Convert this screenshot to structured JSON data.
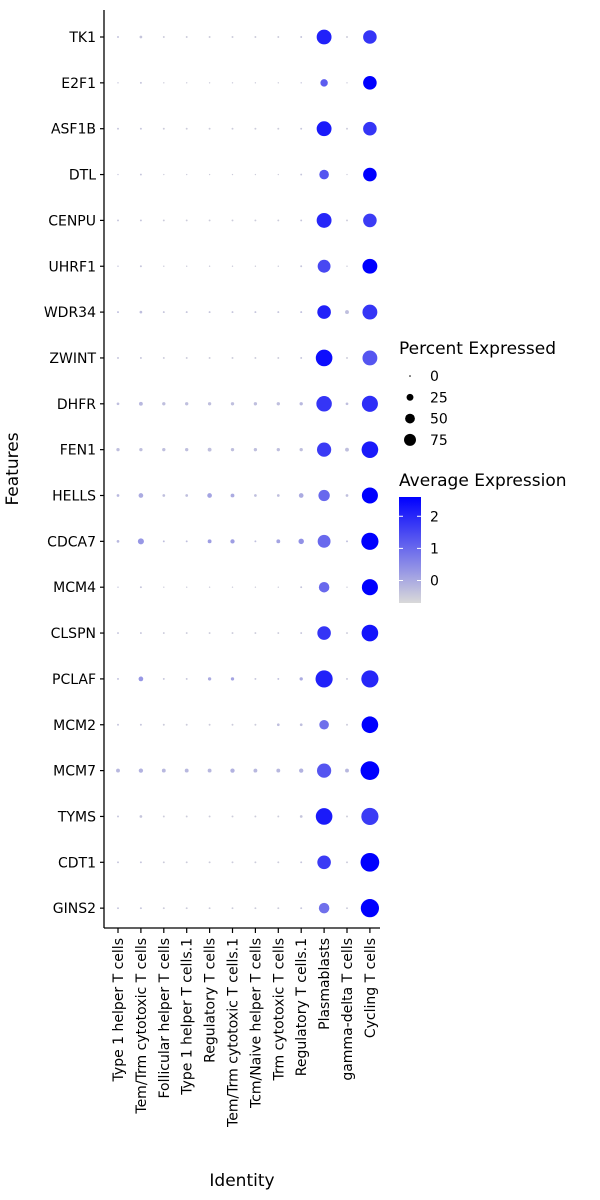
{
  "chart_data": {
    "type": "dot",
    "xlabel": "Identity",
    "ylabel": "Features",
    "categories": [
      "Type 1 helper T cells",
      "Tem/Trm cytotoxic T cells",
      "Follicular helper T cells",
      "Type 1 helper T cells.1",
      "Regulatory T cells",
      "Tem/Trm cytotoxic T cells.1",
      "Tcm/Naive helper T cells",
      "Trm cytotoxic T cells",
      "Regulatory T cells.1",
      "Plasmablasts",
      "gamma-delta T cells",
      "Cycling T cells"
    ],
    "features": [
      "TK1",
      "E2F1",
      "ASF1B",
      "DTL",
      "CENPU",
      "UHRF1",
      "WDR34",
      "ZWINT",
      "DHFR",
      "FEN1",
      "HELLS",
      "CDCA7",
      "MCM4",
      "CLSPN",
      "PCLAF",
      "MCM2",
      "MCM7",
      "TYMS",
      "CDT1",
      "GINS2"
    ],
    "size_legend": {
      "title": "Percent Expressed",
      "values": [
        0,
        25,
        50,
        75
      ],
      "labels": [
        "0",
        "25",
        "50",
        "75"
      ]
    },
    "color_legend": {
      "title": "Average Expression",
      "range": [
        -0.7,
        2.6
      ],
      "ticks": [
        0,
        1,
        2
      ],
      "tick_labels": [
        "0",
        "1",
        "2"
      ],
      "low_color": "#d9d9d9",
      "high_color": "#0000ff"
    },
    "percent_expressed": [
      [
        1,
        2,
        1,
        1,
        1,
        1,
        1,
        1,
        1,
        60,
        1,
        50
      ],
      [
        0,
        1,
        0,
        0,
        0,
        0,
        0,
        0,
        0,
        15,
        0,
        50
      ],
      [
        1,
        1,
        1,
        1,
        1,
        1,
        1,
        1,
        1,
        60,
        1,
        50
      ],
      [
        0,
        1,
        0,
        0,
        0,
        0,
        0,
        0,
        1,
        25,
        0,
        50
      ],
      [
        1,
        1,
        1,
        1,
        1,
        1,
        1,
        1,
        1,
        60,
        1,
        50
      ],
      [
        0,
        1,
        0,
        0,
        0,
        0,
        0,
        0,
        1,
        45,
        0,
        60
      ],
      [
        1,
        2,
        1,
        1,
        1,
        1,
        1,
        1,
        1,
        50,
        4,
        60
      ],
      [
        1,
        1,
        1,
        1,
        1,
        1,
        1,
        1,
        1,
        75,
        1,
        60
      ],
      [
        2,
        4,
        3,
        3,
        3,
        3,
        3,
        3,
        3,
        65,
        2,
        70
      ],
      [
        3,
        3,
        3,
        3,
        4,
        3,
        3,
        3,
        3,
        55,
        4,
        75
      ],
      [
        2,
        6,
        2,
        2,
        6,
        4,
        2,
        2,
        6,
        35,
        2,
        70
      ],
      [
        2,
        10,
        1,
        1,
        4,
        5,
        1,
        4,
        8,
        45,
        1,
        80
      ],
      [
        0,
        1,
        0,
        0,
        0,
        0,
        0,
        0,
        1,
        30,
        0,
        70
      ],
      [
        1,
        1,
        1,
        1,
        1,
        1,
        1,
        1,
        1,
        50,
        1,
        75
      ],
      [
        1,
        6,
        1,
        1,
        3,
        3,
        1,
        1,
        3,
        80,
        1,
        80
      ],
      [
        1,
        1,
        1,
        1,
        1,
        1,
        1,
        2,
        2,
        25,
        1,
        75
      ],
      [
        4,
        5,
        4,
        4,
        4,
        5,
        4,
        4,
        5,
        55,
        4,
        95
      ],
      [
        1,
        2,
        1,
        1,
        1,
        1,
        1,
        1,
        2,
        75,
        1,
        80
      ],
      [
        1,
        1,
        1,
        1,
        1,
        1,
        1,
        1,
        1,
        50,
        1,
        95
      ],
      [
        1,
        1,
        1,
        1,
        1,
        1,
        1,
        1,
        1,
        30,
        1,
        90
      ]
    ],
    "average_expression": [
      [
        -0.4,
        -0.4,
        -0.5,
        -0.5,
        -0.5,
        -0.5,
        -0.5,
        -0.5,
        -0.4,
        2.1,
        -0.5,
        1.8
      ],
      [
        -0.4,
        -0.4,
        -0.5,
        -0.5,
        -0.5,
        -0.5,
        -0.5,
        -0.5,
        -0.4,
        1.2,
        -0.5,
        2.6
      ],
      [
        -0.4,
        -0.4,
        -0.5,
        -0.5,
        -0.5,
        -0.5,
        -0.5,
        -0.5,
        -0.4,
        2.2,
        -0.5,
        1.8
      ],
      [
        -0.4,
        -0.4,
        -0.5,
        -0.5,
        -0.5,
        -0.5,
        -0.5,
        -0.5,
        -0.4,
        1.3,
        -0.5,
        2.6
      ],
      [
        -0.4,
        -0.4,
        -0.5,
        -0.5,
        -0.5,
        -0.5,
        -0.5,
        -0.5,
        -0.4,
        2.0,
        -0.5,
        1.7
      ],
      [
        -0.4,
        -0.4,
        -0.5,
        -0.5,
        -0.5,
        -0.5,
        -0.5,
        -0.5,
        -0.4,
        1.5,
        -0.5,
        2.6
      ],
      [
        -0.3,
        -0.3,
        -0.4,
        -0.4,
        -0.4,
        -0.4,
        -0.4,
        -0.4,
        -0.3,
        2.1,
        -0.3,
        1.8
      ],
      [
        -0.4,
        -0.4,
        -0.5,
        -0.5,
        -0.5,
        -0.5,
        -0.5,
        -0.5,
        -0.4,
        2.4,
        -0.5,
        1.3
      ],
      [
        -0.3,
        -0.2,
        -0.3,
        -0.3,
        -0.3,
        -0.3,
        -0.3,
        -0.3,
        -0.2,
        1.8,
        -0.3,
        1.9
      ],
      [
        -0.3,
        -0.3,
        -0.3,
        -0.3,
        -0.3,
        -0.3,
        -0.3,
        -0.3,
        -0.3,
        1.7,
        -0.3,
        2.2
      ],
      [
        -0.2,
        0.0,
        -0.3,
        -0.3,
        0.1,
        0.0,
        -0.3,
        -0.3,
        0.0,
        1.0,
        -0.3,
        2.6
      ],
      [
        -0.2,
        0.3,
        -0.3,
        -0.3,
        0.2,
        0.2,
        -0.3,
        0.1,
        0.4,
        1.0,
        -0.3,
        2.6
      ],
      [
        -0.4,
        -0.4,
        -0.5,
        -0.5,
        -0.5,
        -0.5,
        -0.5,
        -0.5,
        -0.4,
        1.0,
        -0.5,
        2.6
      ],
      [
        -0.4,
        -0.4,
        -0.5,
        -0.5,
        -0.5,
        -0.5,
        -0.5,
        -0.5,
        -0.4,
        1.8,
        -0.5,
        2.3
      ],
      [
        -0.3,
        0.3,
        -0.4,
        -0.4,
        0.0,
        0.1,
        -0.4,
        -0.3,
        0.0,
        2.1,
        -0.4,
        2.0
      ],
      [
        -0.4,
        -0.4,
        -0.5,
        -0.5,
        -0.5,
        -0.5,
        -0.5,
        -0.3,
        -0.3,
        0.9,
        -0.5,
        2.6
      ],
      [
        -0.2,
        -0.1,
        -0.2,
        -0.2,
        -0.2,
        -0.1,
        -0.2,
        -0.2,
        -0.1,
        1.3,
        -0.2,
        2.6
      ],
      [
        -0.4,
        -0.4,
        -0.5,
        -0.5,
        -0.5,
        -0.5,
        -0.5,
        -0.5,
        -0.4,
        2.2,
        -0.5,
        1.7
      ],
      [
        -0.4,
        -0.4,
        -0.5,
        -0.5,
        -0.5,
        -0.5,
        -0.5,
        -0.5,
        -0.4,
        1.7,
        -0.5,
        2.6
      ],
      [
        -0.4,
        -0.4,
        -0.5,
        -0.5,
        -0.5,
        -0.5,
        -0.5,
        -0.5,
        -0.4,
        0.9,
        -0.5,
        2.6
      ]
    ]
  }
}
